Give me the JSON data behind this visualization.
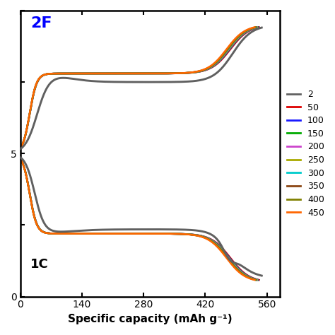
{
  "xlabel": "Specific capacity (mAh g⁻¹)",
  "annotation_2F": "2F",
  "annotation_1C": "1C",
  "xlim": [
    0,
    590
  ],
  "ylim": [
    0,
    10
  ],
  "xticks": [
    0,
    140,
    280,
    420,
    560
  ],
  "yticks": [
    0,
    2.5,
    5.0,
    7.5,
    10.0
  ],
  "yticklabels": [
    "0",
    "",
    "5",
    "",
    ""
  ],
  "cycles": [
    "2",
    "50",
    "100",
    "150",
    "200",
    "250",
    "300",
    "350",
    "400",
    "450"
  ],
  "colors": [
    "#606060",
    "#dd0000",
    "#1a1aff",
    "#00aa00",
    "#cc44cc",
    "#aaaa00",
    "#00cccc",
    "#8B4513",
    "#808000",
    "#ff6600"
  ],
  "max_caps": [
    548,
    542,
    540,
    539,
    538,
    537,
    536,
    535,
    534,
    532
  ],
  "linewidth": 1.8,
  "figsize": [
    4.74,
    4.74
  ],
  "dpi": 100,
  "v_min": 0.5,
  "v_max": 9.5,
  "v_cross": 5.0,
  "v_plateau_upper": 7.8,
  "v_plateau_lower": 2.2
}
